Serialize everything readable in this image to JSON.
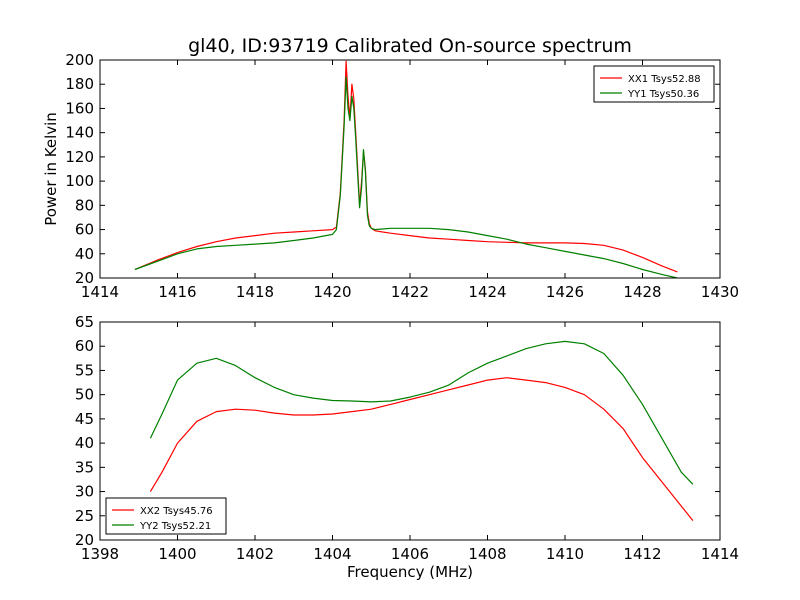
{
  "title": "gl40, ID:93719 Calibrated On-source spectrum",
  "chart_data": [
    {
      "type": "line",
      "title": "gl40, ID:93719 Calibrated On-source spectrum",
      "xlabel": "",
      "ylabel": "Power in Kelvin",
      "xlim": [
        1414,
        1430
      ],
      "ylim": [
        20,
        200
      ],
      "xticks": [
        1414,
        1416,
        1418,
        1420,
        1422,
        1424,
        1426,
        1428,
        1430
      ],
      "yticks": [
        20,
        40,
        60,
        80,
        100,
        120,
        140,
        160,
        180,
        200
      ],
      "legend_position": "top-right",
      "series": [
        {
          "name": "XX1 Tsys52.88",
          "color": "#ff0000",
          "x": [
            1414.9,
            1415.5,
            1416,
            1416.5,
            1417,
            1417.5,
            1418,
            1418.5,
            1419,
            1419.5,
            1420,
            1420.1,
            1420.2,
            1420.3,
            1420.35,
            1420.4,
            1420.45,
            1420.5,
            1420.55,
            1420.6,
            1420.65,
            1420.7,
            1420.75,
            1420.8,
            1420.85,
            1420.9,
            1420.95,
            1421.0,
            1421.1,
            1421.5,
            1422,
            1422.5,
            1423,
            1423.5,
            1424,
            1424.5,
            1425,
            1425.5,
            1426,
            1426.5,
            1427,
            1427.5,
            1428,
            1428.5,
            1428.9
          ],
          "y": [
            27,
            35,
            41,
            46,
            50,
            53,
            55,
            57,
            58,
            59,
            60,
            62,
            90,
            150,
            199,
            170,
            152,
            180,
            168,
            140,
            110,
            80,
            100,
            124,
            110,
            75,
            65,
            61,
            59,
            57,
            55,
            53,
            52,
            51,
            50,
            49.5,
            49,
            49,
            49,
            48.5,
            47,
            43,
            37,
            30,
            25
          ]
        },
        {
          "name": "YY1 Tsys50.36",
          "color": "#008000",
          "x": [
            1414.9,
            1415.5,
            1416,
            1416.5,
            1417,
            1417.5,
            1418,
            1418.5,
            1419,
            1419.5,
            1420,
            1420.1,
            1420.2,
            1420.3,
            1420.35,
            1420.4,
            1420.45,
            1420.5,
            1420.55,
            1420.6,
            1420.65,
            1420.7,
            1420.75,
            1420.8,
            1420.85,
            1420.9,
            1420.95,
            1421.0,
            1421.1,
            1421.5,
            1422,
            1422.5,
            1423,
            1423.5,
            1424,
            1424.5,
            1425,
            1425.5,
            1426,
            1426.5,
            1427,
            1427.5,
            1428,
            1428.5,
            1428.9
          ],
          "y": [
            27,
            34,
            40,
            44,
            46,
            47,
            48,
            49,
            51,
            53,
            56,
            60,
            88,
            145,
            186,
            160,
            150,
            170,
            160,
            135,
            105,
            78,
            95,
            126,
            108,
            72,
            63,
            61,
            60,
            61,
            61,
            61,
            60,
            58,
            55,
            52,
            48,
            45,
            42,
            39,
            36,
            32,
            27,
            23,
            20
          ]
        }
      ]
    },
    {
      "type": "line",
      "title": "",
      "xlabel": "Frequency (MHz)",
      "ylabel": "",
      "xlim": [
        1398,
        1414
      ],
      "ylim": [
        20,
        65
      ],
      "xticks": [
        1398,
        1400,
        1402,
        1404,
        1406,
        1408,
        1410,
        1412,
        1414
      ],
      "yticks": [
        20,
        25,
        30,
        35,
        40,
        45,
        50,
        55,
        60,
        65
      ],
      "legend_position": "bottom-left",
      "series": [
        {
          "name": "XX2 Tsys45.76",
          "color": "#ff0000",
          "x": [
            1399.3,
            1399.6,
            1400,
            1400.5,
            1401,
            1401.5,
            1402,
            1402.5,
            1403,
            1403.5,
            1404,
            1404.5,
            1405,
            1405.5,
            1406,
            1406.5,
            1407,
            1407.5,
            1408,
            1408.5,
            1409,
            1409.5,
            1410,
            1410.5,
            1411,
            1411.5,
            1412,
            1412.5,
            1413,
            1413.3
          ],
          "y": [
            30,
            34,
            40,
            44.5,
            46.5,
            47,
            46.8,
            46.2,
            45.8,
            45.8,
            46,
            46.5,
            47,
            48,
            49,
            50,
            51,
            52,
            53,
            53.5,
            53,
            52.5,
            51.5,
            50,
            47,
            43,
            37,
            32,
            27,
            24
          ]
        },
        {
          "name": "YY2 Tsys52.21",
          "color": "#008000",
          "x": [
            1399.3,
            1399.6,
            1400,
            1400.5,
            1401,
            1401.5,
            1402,
            1402.5,
            1403,
            1403.5,
            1404,
            1404.5,
            1405,
            1405.5,
            1406,
            1406.5,
            1407,
            1407.5,
            1408,
            1408.5,
            1409,
            1409.5,
            1410,
            1410.5,
            1411,
            1411.5,
            1412,
            1412.5,
            1413,
            1413.3
          ],
          "y": [
            41,
            46,
            53,
            56.5,
            57.5,
            56,
            53.5,
            51.5,
            50,
            49.3,
            48.8,
            48.7,
            48.5,
            48.7,
            49.5,
            50.5,
            52,
            54.5,
            56.5,
            58,
            59.5,
            60.5,
            61,
            60.5,
            58.5,
            54,
            48,
            41,
            34,
            31.5
          ]
        }
      ]
    }
  ]
}
